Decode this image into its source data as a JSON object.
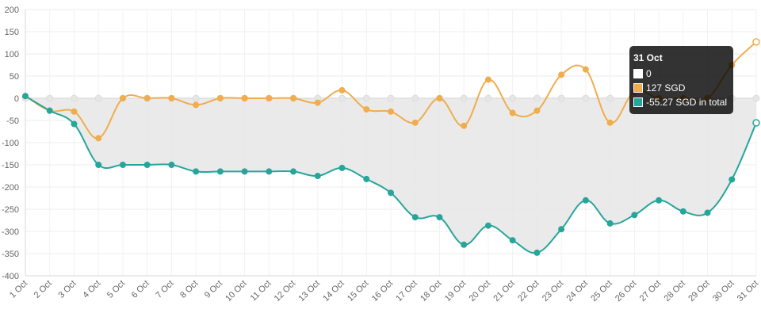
{
  "chart_data": {
    "type": "line",
    "categories": [
      "1 Oct",
      "2 Oct",
      "3 Oct",
      "4 Oct",
      "5 Oct",
      "6 Oct",
      "7 Oct",
      "8 Oct",
      "9 Oct",
      "10 Oct",
      "11 Oct",
      "12 Oct",
      "13 Oct",
      "14 Oct",
      "15 Oct",
      "16 Oct",
      "17 Oct",
      "18 Oct",
      "19 Oct",
      "20 Oct",
      "21 Oct",
      "22 Oct",
      "23 Oct",
      "24 Oct",
      "25 Oct",
      "26 Oct",
      "27 Oct",
      "28 Oct",
      "29 Oct",
      "30 Oct",
      "31 Oct"
    ],
    "ylim": [
      -400,
      200
    ],
    "yticks": [
      200,
      150,
      100,
      50,
      0,
      -50,
      -100,
      -150,
      -200,
      -250,
      -300,
      -350,
      -400
    ],
    "grid": true,
    "series": [
      {
        "color": "#dddddd",
        "values": [
          0,
          0,
          0,
          0,
          0,
          0,
          0,
          0,
          0,
          0,
          0,
          0,
          0,
          0,
          0,
          0,
          0,
          0,
          0,
          0,
          0,
          0,
          0,
          0,
          0,
          0,
          0,
          0,
          0,
          0,
          0
        ]
      },
      {
        "color": "#f0ad4e",
        "values": [
          5,
          -28,
          -30,
          -90,
          0,
          0,
          0,
          -15,
          0,
          0,
          0,
          0,
          -10,
          18,
          -25,
          -30,
          -55,
          0,
          -62,
          42,
          -33,
          -28,
          53,
          65,
          -55,
          15,
          0,
          0,
          0,
          75,
          127
        ]
      },
      {
        "color": "#26a69a",
        "fill": "#e6e6e6",
        "values": [
          5,
          -28,
          -58,
          -150,
          -150,
          -150,
          -150,
          -165,
          -165,
          -165,
          -165,
          -165,
          -175,
          -157,
          -182,
          -213,
          -268,
          -268,
          -330,
          -287,
          -320,
          -348,
          -295,
          -230,
          -282,
          -263,
          -230,
          -255,
          -258,
          -183,
          -55.27
        ]
      }
    ],
    "tooltip": {
      "title": "31 Oct",
      "rows": [
        {
          "color": "#ffffff",
          "text": "0"
        },
        {
          "color": "#f0ad4e",
          "text": "127 SGD"
        },
        {
          "color": "#26a69a",
          "text": "-55.27 SGD in total"
        }
      ]
    }
  }
}
